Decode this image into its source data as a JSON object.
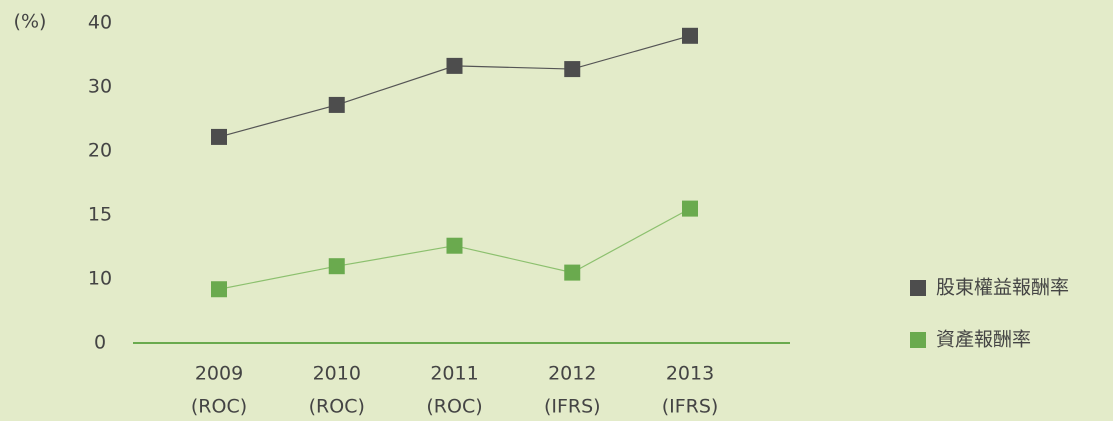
{
  "chart_data": {
    "type": "line",
    "y_label": "(%)",
    "categories": [
      [
        "2009",
        "(ROC)"
      ],
      [
        "2010",
        "(ROC)"
      ],
      [
        "2011",
        "(ROC)"
      ],
      [
        "2012",
        "(IFRS)"
      ],
      [
        "2013",
        "(IFRS)"
      ]
    ],
    "series": [
      {
        "name": "股東權益報酬率",
        "color": "#4d4d4d",
        "line_color": "#555555",
        "values": [
          22.2,
          27.2,
          33.3,
          32.8,
          38.0
        ]
      },
      {
        "name": "資產報酬率",
        "color": "#6aaa4e",
        "line_color": "#8cc06e",
        "values": [
          8.4,
          11.0,
          12.6,
          10.5,
          15.5
        ]
      }
    ],
    "ylim": [
      0,
      40
    ],
    "yticks": [
      0,
      10,
      15,
      20,
      30,
      40
    ],
    "axis_color": "#6aaa4e",
    "legend": "right"
  }
}
